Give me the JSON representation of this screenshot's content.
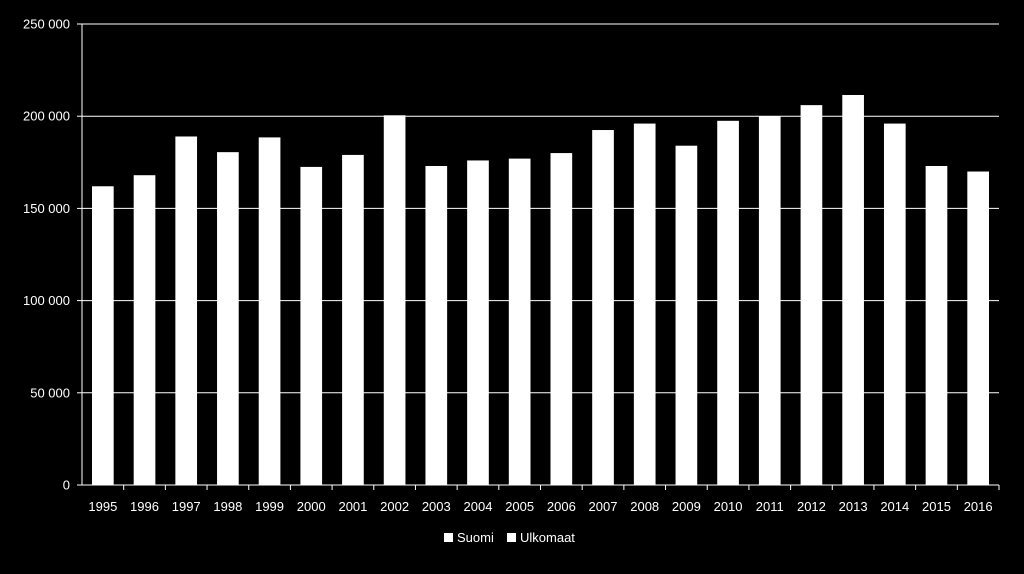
{
  "colors": {
    "background": "#000000",
    "bar": "#ffffff",
    "grid": "#ffffff",
    "text": "#ffffff"
  },
  "chart_data": {
    "type": "bar",
    "title": "",
    "xlabel": "",
    "ylabel": "",
    "ylim": [
      0,
      250000
    ],
    "yticks": [
      0,
      50000,
      100000,
      150000,
      200000,
      250000
    ],
    "ytick_labels": [
      "0",
      "50 000",
      "100 000",
      "150 000",
      "200 000",
      "250 000"
    ],
    "grid": true,
    "legend_position": "bottom-center",
    "legend": [
      "Suomi",
      "Ulkomaat"
    ],
    "categories": [
      "1995",
      "1996",
      "1997",
      "1998",
      "1999",
      "2000",
      "2001",
      "2002",
      "2003",
      "2004",
      "2005",
      "2006",
      "2007",
      "2008",
      "2009",
      "2010",
      "2011",
      "2012",
      "2013",
      "2014",
      "2015",
      "2016"
    ],
    "series": [
      {
        "name": "Suomi",
        "values": [
          162000,
          168000,
          189000,
          180500,
          188500,
          172500,
          179000,
          200500,
          173000,
          176000,
          177000,
          180000,
          192500,
          196000,
          184000,
          197500,
          200000,
          206000,
          211500,
          196000,
          173000,
          170000
        ]
      }
    ]
  }
}
